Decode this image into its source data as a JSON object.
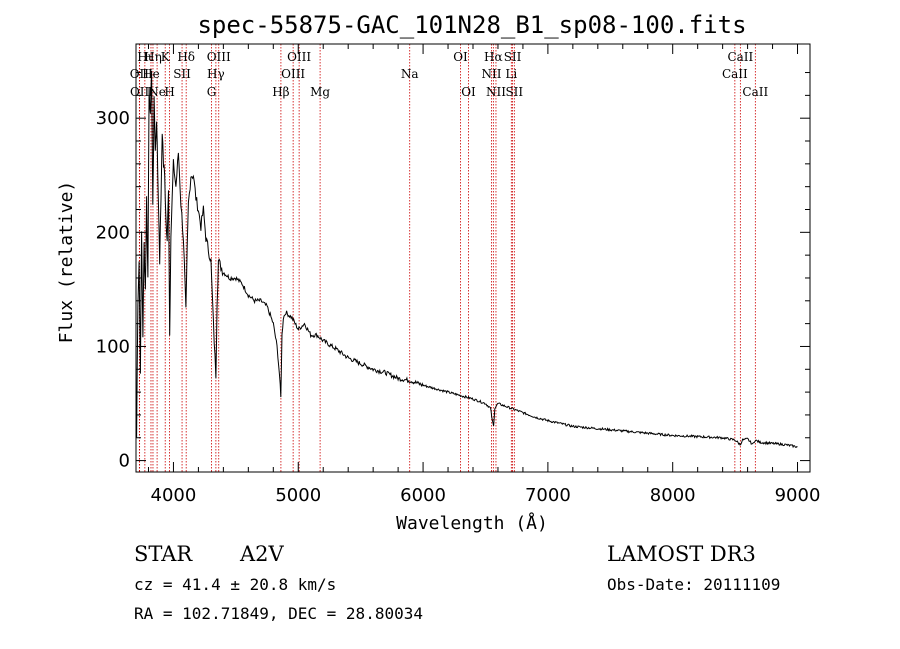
{
  "chart_data": {
    "type": "line",
    "title": "spec-55875-GAC_101N28_B1_sp08-100.fits",
    "xlabel": "Wavelength (Å)",
    "ylabel": "Flux (relative)",
    "xlim": [
      3700,
      9100
    ],
    "ylim": [
      -10,
      365
    ],
    "x_ticks": [
      4000,
      5000,
      6000,
      7000,
      8000,
      9000
    ],
    "x_tick_labels": [
      "4000",
      "5000",
      "6000",
      "7000",
      "8000",
      "9000"
    ],
    "y_ticks": [
      0,
      100,
      200,
      300
    ],
    "y_tick_labels": [
      "0",
      "100",
      "200",
      "300"
    ],
    "series": [
      {
        "name": "Flux",
        "x": [
          3705,
          3715,
          3725,
          3735,
          3745,
          3755,
          3765,
          3775,
          3785,
          3795,
          3805,
          3815,
          3825,
          3835,
          3845,
          3855,
          3865,
          3875,
          3885,
          3890,
          3900,
          3910,
          3920,
          3930,
          3940,
          3950,
          3960,
          3970,
          3980,
          3990,
          4000,
          4020,
          4040,
          4060,
          4080,
          4100,
          4110,
          4120,
          4140,
          4160,
          4180,
          4200,
          4220,
          4240,
          4260,
          4280,
          4300,
          4320,
          4340,
          4350,
          4360,
          4380,
          4400,
          4450,
          4500,
          4550,
          4600,
          4650,
          4700,
          4750,
          4800,
          4830,
          4850,
          4860,
          4870,
          4880,
          4900,
          4950,
          5000,
          5050,
          5100,
          5150,
          5200,
          5300,
          5400,
          5500,
          5600,
          5700,
          5800,
          5900,
          6000,
          6100,
          6200,
          6300,
          6400,
          6500,
          6540,
          6555,
          6565,
          6575,
          6600,
          6650,
          6700,
          6800,
          6900,
          7000,
          7200,
          7400,
          7600,
          7800,
          8000,
          8200,
          8400,
          8500,
          8540,
          8560,
          8600,
          8640,
          8660,
          8700,
          8800,
          8900,
          9000
        ],
        "values": [
          20,
          140,
          175,
          80,
          200,
          110,
          190,
          150,
          230,
          160,
          330,
          300,
          345,
          220,
          320,
          270,
          300,
          250,
          200,
          175,
          230,
          290,
          260,
          250,
          210,
          190,
          240,
          110,
          200,
          230,
          260,
          240,
          270,
          225,
          195,
          130,
          185,
          225,
          250,
          250,
          230,
          220,
          205,
          220,
          195,
          185,
          175,
          120,
          75,
          140,
          175,
          170,
          165,
          160,
          160,
          155,
          145,
          140,
          140,
          135,
          120,
          100,
          75,
          55,
          110,
          125,
          130,
          125,
          115,
          120,
          110,
          110,
          105,
          98,
          90,
          85,
          80,
          77,
          72,
          70,
          66,
          63,
          60,
          57,
          54,
          50,
          46,
          35,
          30,
          46,
          50,
          48,
          46,
          42,
          38,
          35,
          30,
          28,
          26,
          24,
          22,
          21,
          20,
          18,
          14,
          18,
          19,
          14,
          18,
          16,
          15,
          14,
          12
        ]
      }
    ],
    "emission_lines": [
      {
        "label": "Hι",
        "x": 3771,
        "row": 1
      },
      {
        "label": "OII",
        "x": 3727,
        "row": 2
      },
      {
        "label": "OII",
        "x": 3729,
        "row": 3
      },
      {
        "label": "Hη",
        "x": 3836,
        "row": 1
      },
      {
        "label": "He",
        "x": 3820,
        "row": 2
      },
      {
        "label": "Ne",
        "x": 3869,
        "row": 3
      },
      {
        "label": "K",
        "x": 3934,
        "row": 1
      },
      {
        "label": "SII",
        "x": 4069,
        "row": 2
      },
      {
        "label": "H",
        "x": 3969,
        "row": 3
      },
      {
        "label": "Hδ",
        "x": 4102,
        "row": 1
      },
      {
        "label": "OIII",
        "x": 4363,
        "row": 1
      },
      {
        "label": "Hγ",
        "x": 4340,
        "row": 2
      },
      {
        "label": "G",
        "x": 4305,
        "row": 3
      },
      {
        "label": "Hβ",
        "x": 4861,
        "row": 3
      },
      {
        "label": "OIII",
        "x": 5007,
        "row": 1
      },
      {
        "label": "OIII",
        "x": 4959,
        "row": 2
      },
      {
        "label": "Mg",
        "x": 5175,
        "row": 3
      },
      {
        "label": "Na",
        "x": 5893,
        "row": 2
      },
      {
        "label": "OI",
        "x": 6300,
        "row": 1
      },
      {
        "label": "OI",
        "x": 6364,
        "row": 3
      },
      {
        "label": "Hα",
        "x": 6563,
        "row": 1
      },
      {
        "label": "NII",
        "x": 6548,
        "row": 2
      },
      {
        "label": "NII",
        "x": 6584,
        "row": 3
      },
      {
        "label": "SII",
        "x": 6717,
        "row": 1
      },
      {
        "label": "Li",
        "x": 6707,
        "row": 2
      },
      {
        "label": "SII",
        "x": 6731,
        "row": 3
      },
      {
        "label": "CaII",
        "x": 8542,
        "row": 1
      },
      {
        "label": "CaII",
        "x": 8498,
        "row": 2
      },
      {
        "label": "CaII",
        "x": 8662,
        "row": 3
      }
    ],
    "line_color": "#000000",
    "marker_color": "#cc0000"
  },
  "info": {
    "class": "STAR",
    "subclass": "A2V",
    "cz": "cz = 41.4 ± 20.8 km/s",
    "radec": "RA = 102.71849, DEC =  28.80034",
    "survey": "LAMOST DR3",
    "obsdate": "Obs-Date: 20111109"
  }
}
